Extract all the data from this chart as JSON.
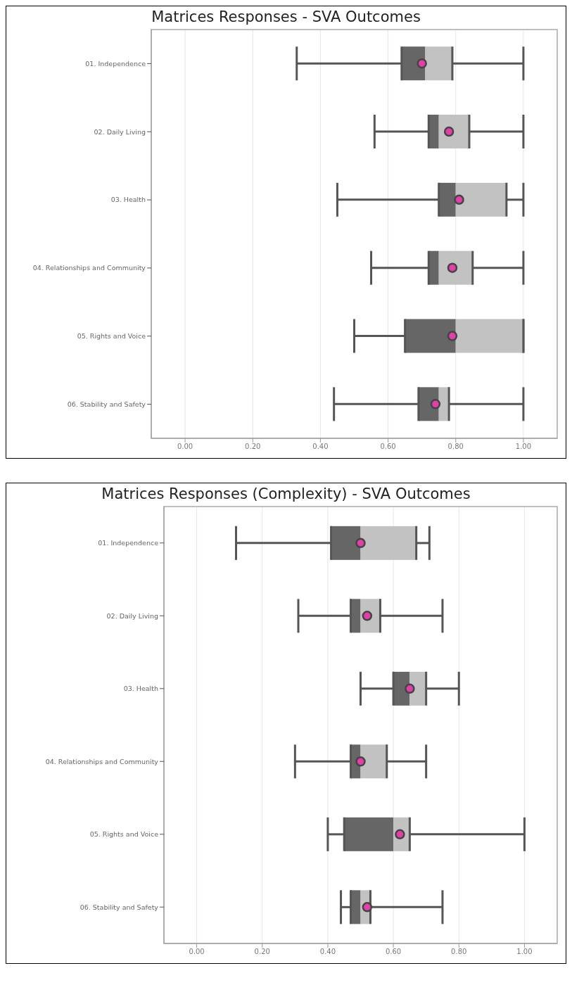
{
  "chart_data": [
    {
      "type": "box",
      "title": "Matrices Responses - SVA Outcomes",
      "orientation": "horizontal",
      "categories": [
        "01. Independence",
        "02. Daily Living",
        "03. Health",
        "04. Relationships and Community",
        "05. Rights and Voice",
        "06. Stability and Safety"
      ],
      "series": [
        {
          "type": "box",
          "color": "#c2c2c2",
          "colors": [
            "#666666",
            "#666666",
            "#666666",
            "#666666",
            "#666666",
            "#666666"
          ],
          "boxes": [
            {
              "low": 0.33,
              "q1": 0.64,
              "median": 0.71,
              "q3": 0.79,
              "high": 1.0
            },
            {
              "low": 0.56,
              "q1": 0.72,
              "median": 0.75,
              "q3": 0.84,
              "high": 1.0
            },
            {
              "low": 0.45,
              "q1": 0.75,
              "median": 0.8,
              "q3": 0.95,
              "high": 1.0
            },
            {
              "low": 0.55,
              "q1": 0.72,
              "median": 0.75,
              "q3": 0.85,
              "high": 1.0
            },
            {
              "low": 0.5,
              "q1": 0.65,
              "median": 0.8,
              "q3": 1.0,
              "high": 1.0
            },
            {
              "low": 0.44,
              "q1": 0.69,
              "median": 0.75,
              "q3": 0.78,
              "high": 1.0
            }
          ]
        },
        {
          "type": "scatter",
          "color": "#e040a8",
          "x": [
            "01. Independence",
            "02. Daily Living",
            "03. Health",
            "04. Relationships and Community",
            "05. Rights and Voice",
            "06. Stability and Safety"
          ],
          "values": [
            0.7,
            0.78,
            0.81,
            0.79,
            0.79,
            0.74
          ]
        }
      ],
      "xlim": [
        -0.1,
        1.1
      ],
      "xticks": [
        {
          "value": 0,
          "label": "0.00"
        },
        {
          "value": 0.2,
          "label": "0.20"
        },
        {
          "value": 0.4,
          "label": "0.40"
        },
        {
          "value": 0.6,
          "label": "0.60"
        },
        {
          "value": 0.8,
          "label": "0.80"
        },
        {
          "value": 1,
          "label": "1.00"
        }
      ],
      "grid": "x",
      "marker": "circle"
    },
    {
      "type": "box",
      "title": "Matrices Responses (Complexity) - SVA Outcomes",
      "orientation": "horizontal",
      "categories": [
        "01. Independence",
        "02. Daily Living",
        "03. Health",
        "04. Relationships and Community",
        "05. Rights and Voice",
        "06. Stability and Safety"
      ],
      "series": [
        {
          "type": "box",
          "color": "#c2c2c2",
          "colors": [
            "#666666",
            "#666666",
            "#666666",
            "#666666",
            "#666666",
            "#666666"
          ],
          "boxes": [
            {
              "low": 0.12,
              "q1": 0.41,
              "median": 0.5,
              "q3": 0.67,
              "high": 0.71
            },
            {
              "low": 0.31,
              "q1": 0.47,
              "median": 0.5,
              "q3": 0.56,
              "high": 0.75
            },
            {
              "low": 0.5,
              "q1": 0.6,
              "median": 0.65,
              "q3": 0.7,
              "high": 0.8
            },
            {
              "low": 0.3,
              "q1": 0.47,
              "median": 0.5,
              "q3": 0.58,
              "high": 0.7
            },
            {
              "low": 0.4,
              "q1": 0.45,
              "median": 0.6,
              "q3": 0.65,
              "high": 1.0
            },
            {
              "low": 0.44,
              "q1": 0.47,
              "median": 0.5,
              "q3": 0.53,
              "high": 0.75
            }
          ]
        },
        {
          "type": "scatter",
          "color": "#e040a8",
          "x": [
            "01. Independence",
            "02. Daily Living",
            "03. Health",
            "04. Relationships and Community",
            "05. Rights and Voice",
            "06. Stability and Safety"
          ],
          "values": [
            0.5,
            0.52,
            0.65,
            0.5,
            0.62,
            0.52
          ]
        }
      ],
      "xlim": [
        -0.1,
        1.1
      ],
      "xticks": [
        {
          "value": 0,
          "label": "0.00"
        },
        {
          "value": 0.2,
          "label": "0.20"
        },
        {
          "value": 0.4,
          "label": "0.40"
        },
        {
          "value": 0.6,
          "label": "0.60"
        },
        {
          "value": 0.8,
          "label": "0.80"
        },
        {
          "value": 1,
          "label": "1.00"
        }
      ],
      "grid": "x",
      "marker": "circle"
    }
  ]
}
